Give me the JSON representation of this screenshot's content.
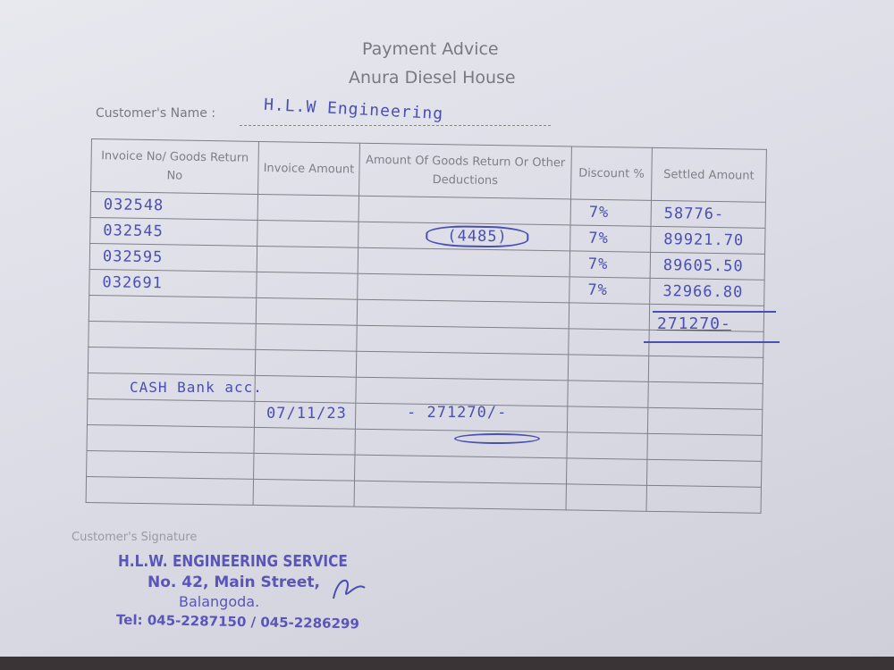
{
  "form": {
    "title": "Payment Advice",
    "company": "Anura Diesel House",
    "customer_label": "Customer's Name :",
    "customer_name": "H.L.W Engineering",
    "columns": [
      "Invoice No/ Goods Return No",
      "Invoice Amount",
      "Amount Of Goods Return Or Other Deductions",
      "Discount %",
      "Settled Amount"
    ],
    "rows": [
      {
        "invoice": "032548",
        "deduction": "",
        "discount": "7%",
        "settled": "58776-"
      },
      {
        "invoice": "032545",
        "deduction": "(4485)",
        "discount": "7%",
        "settled": "89921.70"
      },
      {
        "invoice": "032595",
        "deduction": "",
        "discount": "7%",
        "settled": "89605.50"
      },
      {
        "invoice": "032691",
        "deduction": "",
        "discount": "7%",
        "settled": "32966.80"
      }
    ],
    "total": "271270-",
    "payment_note": "CASH Bank acc.",
    "payment_date": "07/11/23",
    "payment_amount": "- 271270/-",
    "signature_label": "Customer's Signature"
  },
  "stamp": {
    "line1": "H.L.W. ENGINEERING SERVICE",
    "line2": "No. 42, Main Street,",
    "line3": "Balangoda.",
    "line4": "Tel: 045-2287150 / 045-2286299"
  },
  "colors": {
    "ink": "#4a4fb2",
    "print": "#777a80",
    "stamp": "#5a55b8"
  }
}
